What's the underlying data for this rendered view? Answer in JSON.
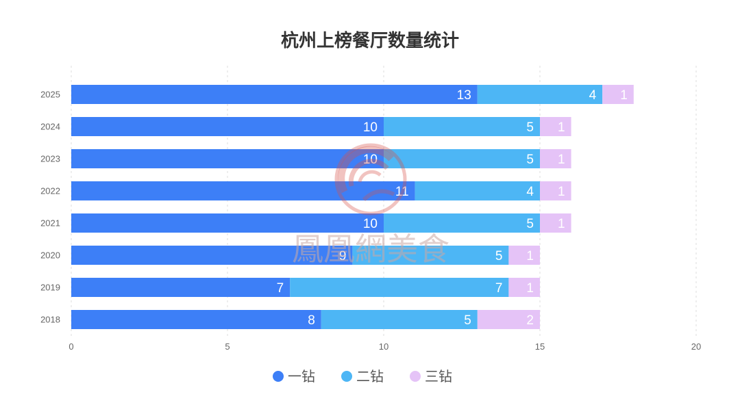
{
  "chart_data": {
    "type": "bar",
    "orientation": "horizontal",
    "stacked": true,
    "title": "杭州上榜餐厅数量统计",
    "categories": [
      "2025",
      "2024",
      "2023",
      "2022",
      "2021",
      "2020",
      "2019",
      "2018"
    ],
    "series": [
      {
        "name": "一钻",
        "color": "#3d7ff7",
        "values": [
          13,
          10,
          10,
          11,
          10,
          9,
          7,
          8
        ]
      },
      {
        "name": "二钻",
        "color": "#4db6f5",
        "values": [
          4,
          5,
          5,
          4,
          5,
          5,
          7,
          5
        ]
      },
      {
        "name": "三钻",
        "color": "#e5c3f7",
        "values": [
          1,
          1,
          1,
          1,
          1,
          1,
          1,
          2
        ]
      }
    ],
    "xlim": [
      0,
      20
    ],
    "xticks": [
      0,
      5,
      10,
      15,
      20
    ],
    "grid": "vertical-dashed",
    "legend_position": "bottom",
    "data_labels": true
  },
  "watermark": {
    "text": "鳳凰網美食",
    "color": "#d8524a"
  }
}
